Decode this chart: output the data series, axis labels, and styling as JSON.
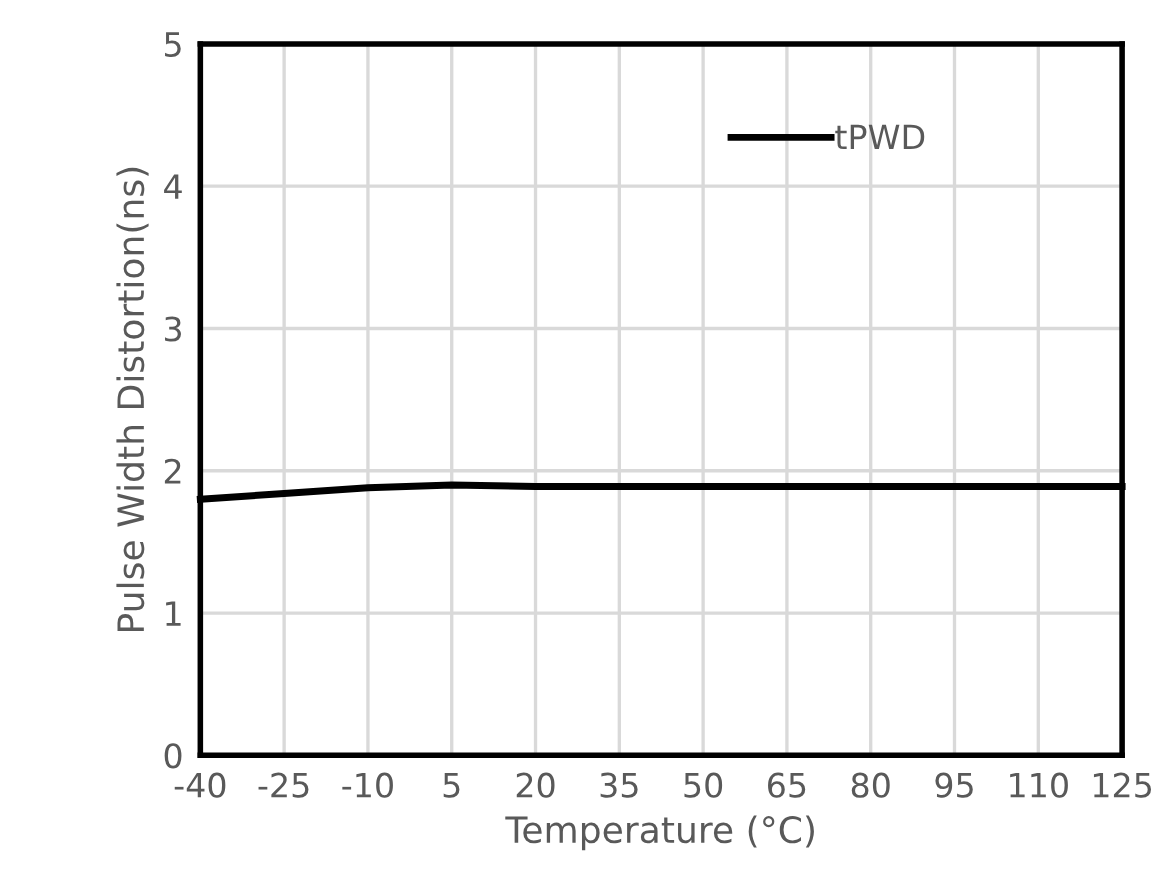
{
  "chart_data": {
    "type": "line",
    "xlabel": "Temperature (°C)",
    "ylabel": "Pulse Width Distortion(ns)",
    "x": [
      -40,
      -25,
      -10,
      5,
      20,
      35,
      50,
      65,
      80,
      95,
      110,
      125
    ],
    "series": [
      {
        "name": "tPWD",
        "color": "#000000",
        "values": [
          1.8,
          1.84,
          1.88,
          1.9,
          1.89,
          1.89,
          1.89,
          1.89,
          1.89,
          1.89,
          1.89,
          1.89
        ]
      }
    ],
    "xlim": [
      -40,
      125
    ],
    "xticks": [
      -40,
      -25,
      -10,
      5,
      20,
      35,
      50,
      65,
      80,
      95,
      110,
      125
    ],
    "ylim": [
      0,
      5
    ],
    "yticks": [
      0,
      1,
      2,
      3,
      4,
      5
    ],
    "grid": true,
    "legend": "top right",
    "marker": "none",
    "line_style": "solid"
  }
}
